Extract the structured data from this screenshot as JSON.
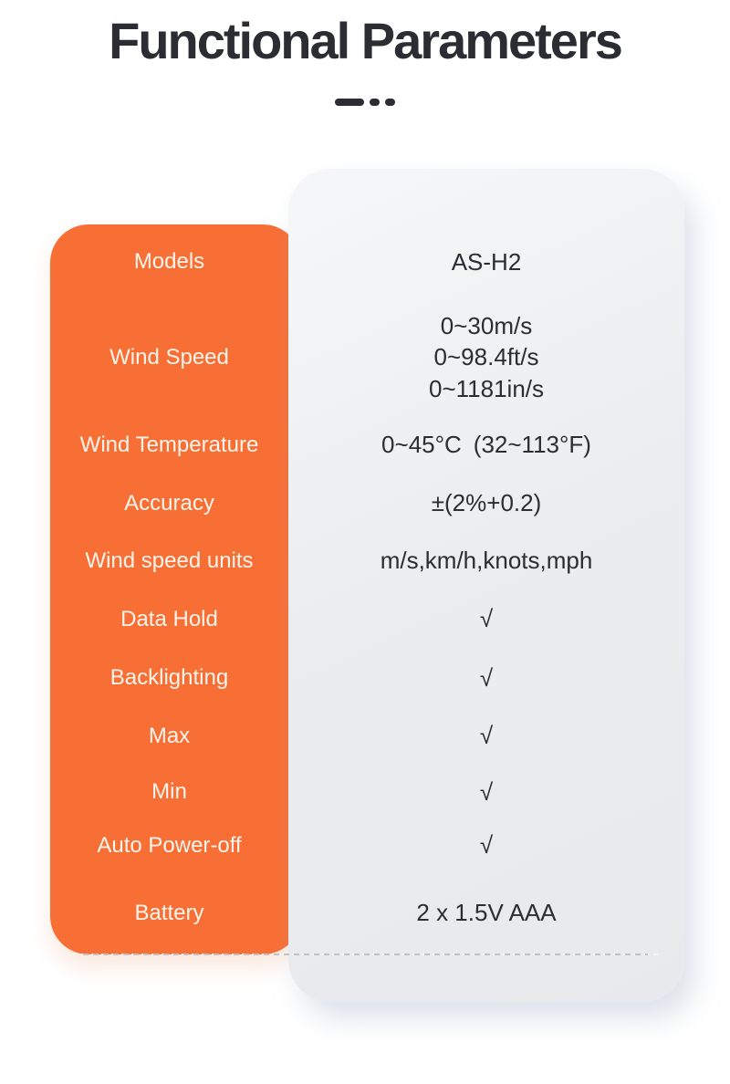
{
  "header": {
    "title": "Functional Parameters"
  },
  "decoration": {
    "style": "long-dash-and-two-dots"
  },
  "table": {
    "rows": [
      {
        "label": "Models",
        "value": "AS-H2"
      },
      {
        "label": "Wind Speed",
        "value": "0~30m/s\n0~98.4ft/s\n0~1181in/s"
      },
      {
        "label": "Wind Temperature",
        "value": "0~45°C (32~113°F)"
      },
      {
        "label": "Accuracy",
        "value": "±(2%+0.2)"
      },
      {
        "label": "Wind speed units",
        "value": "m/s,km/h,knots,mph"
      },
      {
        "label": "Data Hold",
        "value": "√"
      },
      {
        "label": "Backlighting",
        "value": "√"
      },
      {
        "label": "Max",
        "value": "√"
      },
      {
        "label": "Min",
        "value": "√"
      },
      {
        "label": "Auto Power-off",
        "value": "√"
      },
      {
        "label": "Battery",
        "value": "2 x 1.5V AAA"
      }
    ]
  },
  "colors": {
    "accent_orange": "#f76f35",
    "card_gray": "#eaecef",
    "title_dark": "#2b2d33",
    "value_dark": "#2b2d32",
    "label_light": "#fdf4ec",
    "sep_gray": "#bfc3c9"
  }
}
